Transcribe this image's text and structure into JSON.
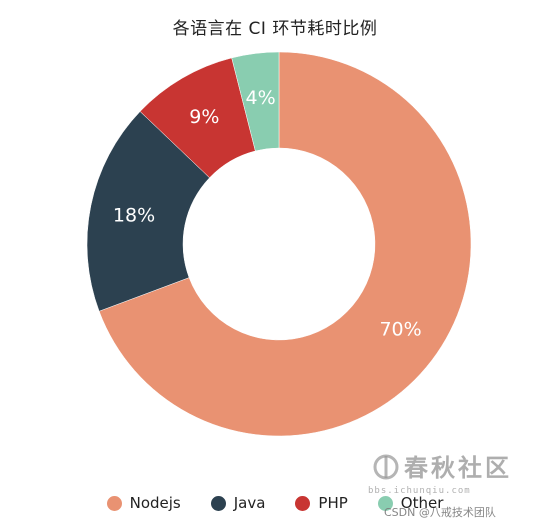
{
  "chart_data": {
    "type": "pie",
    "variant": "donut",
    "title": "各语言在 CI 环节耗时比例",
    "slices": [
      {
        "label": "Nodejs",
        "value": 70,
        "value_label": "70%",
        "color": "#E99272"
      },
      {
        "label": "Java",
        "value": 18,
        "value_label": "18%",
        "color": "#2C4150"
      },
      {
        "label": "PHP",
        "value": 9,
        "value_label": "9%",
        "color": "#C83532"
      },
      {
        "label": "Other",
        "value": 4,
        "value_label": "4%",
        "color": "#89CDB0"
      }
    ],
    "legend_position": "bottom"
  },
  "watermark": {
    "main": "春秋社区",
    "url": "bbs.ichunqiu.com",
    "credit": "CSDN @八戒技术团队"
  }
}
